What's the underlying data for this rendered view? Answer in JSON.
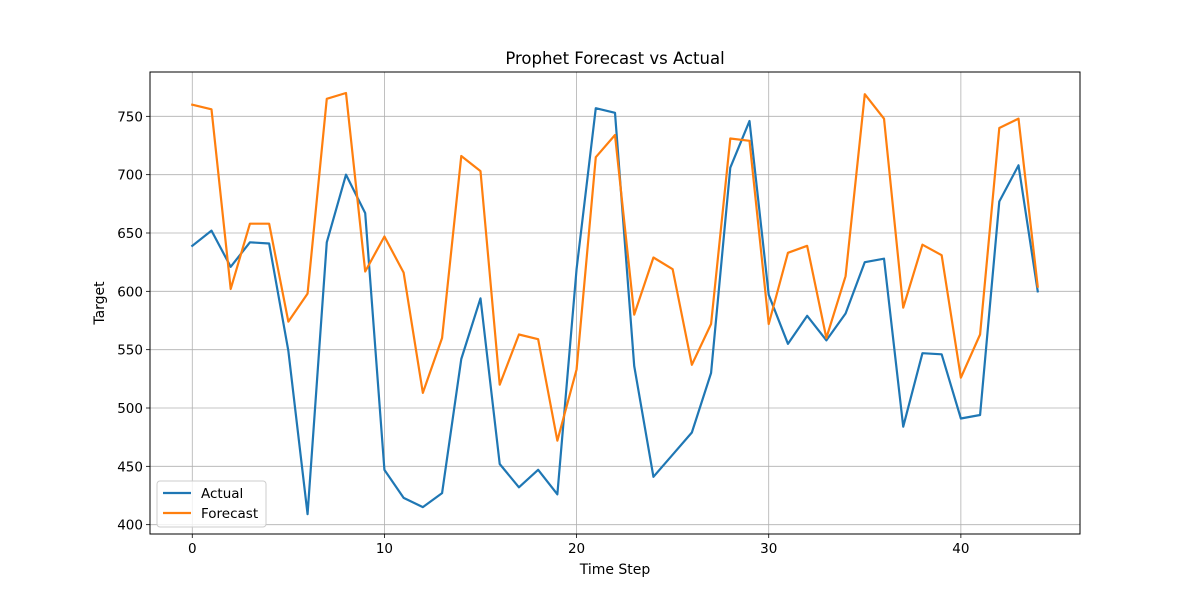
{
  "chart_data": {
    "type": "line",
    "title": "Prophet Forecast vs Actual",
    "xlabel": "Time Step",
    "ylabel": "Target",
    "xlim": [
      -2.2,
      46.2
    ],
    "ylim": [
      392,
      788
    ],
    "xticks": [
      0,
      10,
      20,
      30,
      40
    ],
    "yticks": [
      400,
      450,
      500,
      550,
      600,
      650,
      700,
      750
    ],
    "grid": true,
    "legend_position": "lower-left",
    "x": [
      0,
      1,
      2,
      3,
      4,
      5,
      6,
      7,
      8,
      9,
      10,
      11,
      12,
      13,
      14,
      15,
      16,
      17,
      18,
      19,
      20,
      21,
      22,
      23,
      24,
      25,
      26,
      27,
      28,
      29,
      30,
      31,
      32,
      33,
      34,
      35,
      36,
      37,
      38,
      39,
      40,
      41,
      42,
      43,
      44
    ],
    "series": [
      {
        "name": "Actual",
        "color": "#1f77b4",
        "values": [
          639,
          652,
          621,
          642,
          641,
          549,
          409,
          642,
          700,
          667,
          447,
          423,
          415,
          427,
          542,
          594,
          452,
          432,
          447,
          426,
          619,
          757,
          753,
          536,
          441,
          460,
          479,
          530,
          706,
          746,
          597,
          555,
          579,
          558,
          581,
          625,
          628,
          484,
          547,
          546,
          491,
          494,
          677,
          708,
          600
        ]
      },
      {
        "name": "Forecast",
        "color": "#ff7f0e",
        "values": [
          760,
          756,
          602,
          658,
          658,
          574,
          598,
          765,
          770,
          617,
          647,
          616,
          513,
          560,
          716,
          703,
          520,
          563,
          559,
          472,
          533,
          715,
          734,
          580,
          629,
          619,
          537,
          572,
          731,
          729,
          572,
          633,
          639,
          560,
          613,
          769,
          748,
          586,
          640,
          631,
          526,
          563,
          740,
          748,
          604
        ]
      }
    ]
  }
}
